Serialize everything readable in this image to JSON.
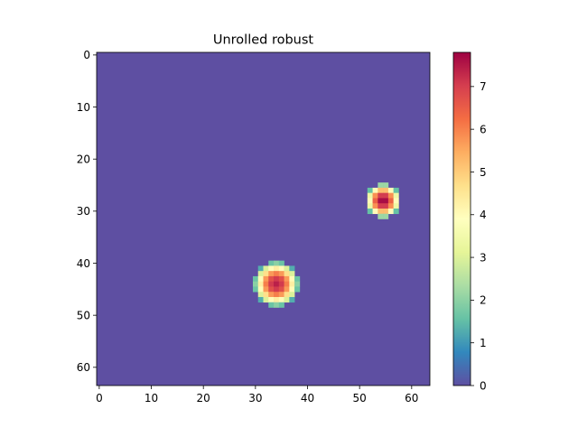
{
  "chart_data": {
    "type": "heatmap",
    "title": "Unrolled robust",
    "xlabel": "",
    "ylabel": "",
    "grid_size": [
      64,
      64
    ],
    "xlim": [
      -0.5,
      63.5
    ],
    "ylim": [
      63.5,
      -0.5
    ],
    "x_ticks": [
      0,
      10,
      20,
      30,
      40,
      50,
      60
    ],
    "y_ticks": [
      0,
      10,
      20,
      30,
      40,
      50,
      60
    ],
    "colormap": "Spectral_r",
    "background_value": 0,
    "blobs": [
      {
        "center_col": 54.5,
        "center_row": 28,
        "peak": 7.8,
        "radius": 3.3
      },
      {
        "center_col": 34,
        "center_row": 44,
        "peak": 7.4,
        "radius": 4.3
      }
    ],
    "colorbar": {
      "min": 0,
      "max": 7.8,
      "ticks": [
        0,
        1,
        2,
        3,
        4,
        5,
        6,
        7
      ]
    },
    "grid": false,
    "legend": "none"
  },
  "colors": {
    "low": "#5e4fa2",
    "high": "#9e0142"
  }
}
